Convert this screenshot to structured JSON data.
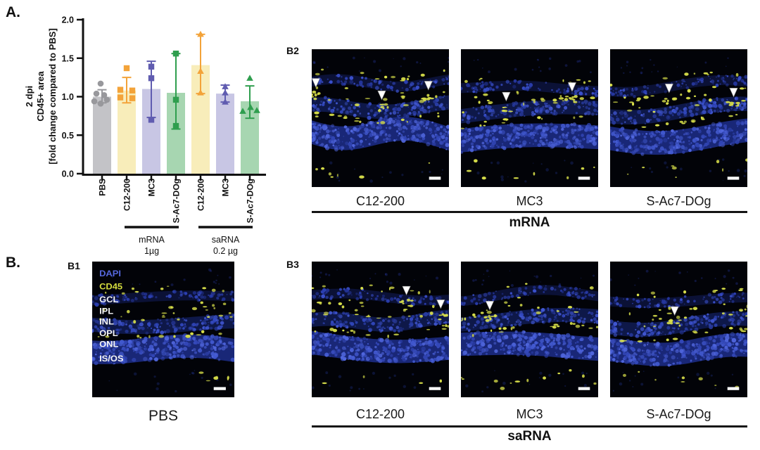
{
  "panels": {
    "a_tag": "A.",
    "b_tag": "B."
  },
  "chart_data": {
    "type": "bar",
    "title": "",
    "ylabel_lines": [
      "2 dpi",
      "CD45+ area",
      "[fold change compared to PBS]"
    ],
    "xlabel": "",
    "ylim": [
      0.0,
      2.0
    ],
    "yticks": [
      "2.0",
      "1.5",
      "1.0",
      "0.5",
      "0.0"
    ],
    "grid": false,
    "legend": "none",
    "bars": [
      {
        "label": "PBS",
        "value": 1.0,
        "err": [
          0.92,
          1.09
        ],
        "marker": "circle",
        "bar_color": "#c3c3c7",
        "point_color": "#98989c",
        "points": [
          [
            -2,
            1.17
          ],
          [
            -8,
            1.04
          ],
          [
            3,
            1.02
          ],
          [
            -11,
            0.94
          ],
          [
            -2,
            0.91
          ],
          [
            7,
            0.96
          ]
        ]
      },
      {
        "label": "C12-200",
        "value": 1.08,
        "err": [
          0.92,
          1.25
        ],
        "marker": "square",
        "bar_color": "#f8edba",
        "point_color": "#f3a339",
        "points": [
          [
            0,
            1.37
          ],
          [
            -9,
            1.09
          ],
          [
            8,
            1.08
          ],
          [
            -9,
            0.99
          ],
          [
            8,
            0.98
          ]
        ]
      },
      {
        "label": "MC3",
        "value": 1.1,
        "err": [
          0.73,
          1.46
        ],
        "marker": "square",
        "bar_color": "#c8c6e4",
        "point_color": "#605cb0",
        "points": [
          [
            0,
            1.39
          ],
          [
            0,
            1.24
          ],
          [
            0,
            0.7
          ]
        ]
      },
      {
        "label": "S-Ac7-DOg",
        "value": 1.05,
        "err": [
          0.58,
          1.56
        ],
        "marker": "square",
        "bar_color": "#a7d6b1",
        "point_color": "#2f9e4e",
        "points": [
          [
            0,
            1.56
          ],
          [
            0,
            0.96
          ],
          [
            0,
            0.62
          ]
        ]
      },
      {
        "label": "C12-200",
        "value": 1.41,
        "err": [
          1.04,
          1.81
        ],
        "marker": "triangle",
        "bar_color": "#f8edba",
        "point_color": "#f3a339",
        "points": [
          [
            0,
            1.81
          ],
          [
            0,
            1.33
          ],
          [
            0,
            1.05
          ]
        ]
      },
      {
        "label": "MC3",
        "value": 1.04,
        "err": [
          0.93,
          1.15
        ],
        "marker": "triangle",
        "bar_color": "#c8c6e4",
        "point_color": "#605cb0",
        "points": [
          [
            0,
            1.13
          ],
          [
            0,
            1.05
          ],
          [
            0,
            0.93
          ]
        ]
      },
      {
        "label": "S-Ac7-DOg",
        "value": 0.94,
        "err": [
          0.72,
          1.14
        ],
        "marker": "triangle",
        "bar_color": "#a7d6b1",
        "point_color": "#2f9e4e",
        "points": [
          [
            0,
            1.24
          ],
          [
            -10,
            0.81
          ],
          [
            1,
            0.86
          ],
          [
            10,
            0.82
          ]
        ]
      }
    ],
    "groups": [
      {
        "line1": "mRNA",
        "line2": "1µg",
        "from": 1,
        "to": 3
      },
      {
        "line1": "saRNA",
        "line2": "0.2 µg",
        "from": 4,
        "to": 6
      }
    ]
  },
  "microscopy": {
    "b1": {
      "tag": "B1",
      "caption": "PBS",
      "stains": [
        {
          "label": "DAPI",
          "color": "#5668dd"
        },
        {
          "label": "CD45",
          "color": "#d6de3e"
        }
      ],
      "layers": [
        "GCL",
        "IPL",
        "INL",
        "OPL",
        "ONL",
        "IS/OS"
      ],
      "arrows": [],
      "seed": 7
    },
    "b2": {
      "tag": "B2",
      "group": "mRNA",
      "images": [
        {
          "label": "C12-200",
          "arrows": [
            [
              0.03,
              0.26
            ],
            [
              0.51,
              0.35
            ],
            [
              0.85,
              0.28
            ]
          ],
          "seed": 21
        },
        {
          "label": "MC3",
          "arrows": [
            [
              0.33,
              0.36
            ],
            [
              0.81,
              0.29
            ]
          ],
          "seed": 22
        },
        {
          "label": "S-Ac7-DOg",
          "arrows": [
            [
              0.43,
              0.3
            ],
            [
              0.9,
              0.33
            ]
          ],
          "seed": 23
        }
      ]
    },
    "b3": {
      "tag": "B3",
      "group": "saRNA",
      "images": [
        {
          "label": "C12-200",
          "arrows": [
            [
              0.69,
              0.23
            ],
            [
              0.94,
              0.33
            ]
          ],
          "seed": 31
        },
        {
          "label": "MC3",
          "arrows": [
            [
              0.21,
              0.34
            ]
          ],
          "seed": 32
        },
        {
          "label": "S-Ac7-DOg",
          "arrows": [
            [
              0.47,
              0.38
            ]
          ],
          "seed": 33
        }
      ]
    }
  }
}
